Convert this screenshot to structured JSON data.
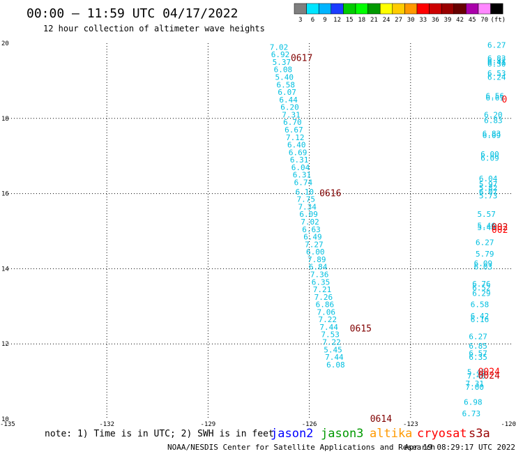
{
  "header": {
    "title": "00:00 – 11:59 UTC 04/17/2022",
    "subtitle": "12 hour collection of altimeter wave heights"
  },
  "colorbar": {
    "labels": [
      "3",
      "6",
      "9",
      "12",
      "15",
      "18",
      "21",
      "24",
      "27",
      "30",
      "33",
      "36",
      "39",
      "42",
      "45",
      "70",
      "(ft)"
    ],
    "colors": [
      "#7f7f7f",
      "#00e5ff",
      "#00b4ff",
      "#1b3cff",
      "#00cc00",
      "#00ff00",
      "#009900",
      "#ffff00",
      "#ffcc00",
      "#ff9900",
      "#ff0000",
      "#cc0000",
      "#990000",
      "#660000",
      "#aa00aa",
      "#ff88ff",
      "#000000"
    ]
  },
  "chart_data": {
    "type": "scatter",
    "xlim": [
      -135,
      -120
    ],
    "ylim": [
      10,
      20
    ],
    "xticks": [
      -135,
      -132,
      -129,
      -126,
      -123,
      -120
    ],
    "xtick_labels": [
      "-135",
      "-132",
      "-129",
      "-126",
      "-123",
      "-120"
    ],
    "yticks": [
      10,
      12,
      14,
      16,
      18,
      20
    ],
    "ytick_labels": [
      "10",
      "12",
      "14",
      "16",
      "18",
      "20"
    ],
    "grid": true,
    "track_main": [
      {
        "x": -126.9,
        "y": 19.9,
        "v": "7.02"
      },
      {
        "x": -126.86,
        "y": 19.7,
        "v": "6.92"
      },
      {
        "x": -126.82,
        "y": 19.5,
        "v": "5.37"
      },
      {
        "x": -126.78,
        "y": 19.3,
        "v": "6.08"
      },
      {
        "x": -126.74,
        "y": 19.1,
        "v": "5.40"
      },
      {
        "x": -126.7,
        "y": 18.9,
        "v": "6.58"
      },
      {
        "x": -126.66,
        "y": 18.7,
        "v": "6.07"
      },
      {
        "x": -126.62,
        "y": 18.5,
        "v": "6.44"
      },
      {
        "x": -126.58,
        "y": 18.3,
        "v": "6.20"
      },
      {
        "x": -126.54,
        "y": 18.1,
        "v": "7.31"
      },
      {
        "x": -126.5,
        "y": 17.9,
        "v": "6.70"
      },
      {
        "x": -126.46,
        "y": 17.7,
        "v": "6.67"
      },
      {
        "x": -126.42,
        "y": 17.5,
        "v": "7.12"
      },
      {
        "x": -126.38,
        "y": 17.3,
        "v": "6.40"
      },
      {
        "x": -126.34,
        "y": 17.1,
        "v": "6.69"
      },
      {
        "x": -126.3,
        "y": 16.9,
        "v": "6.31"
      },
      {
        "x": -126.26,
        "y": 16.7,
        "v": "6.04"
      },
      {
        "x": -126.22,
        "y": 16.5,
        "v": "6.31"
      },
      {
        "x": -126.18,
        "y": 16.3,
        "v": "6.74"
      },
      {
        "x": -126.14,
        "y": 16.05,
        "v": "6.10"
      },
      {
        "x": -126.1,
        "y": 15.85,
        "v": "7.75"
      },
      {
        "x": -126.06,
        "y": 15.65,
        "v": "7.34"
      },
      {
        "x": -126.02,
        "y": 15.45,
        "v": "6.09"
      },
      {
        "x": -125.98,
        "y": 15.25,
        "v": "7.02"
      },
      {
        "x": -125.94,
        "y": 15.05,
        "v": "6.63"
      },
      {
        "x": -125.9,
        "y": 14.85,
        "v": "6.49"
      },
      {
        "x": -125.86,
        "y": 14.65,
        "v": "7.27"
      },
      {
        "x": -125.82,
        "y": 14.45,
        "v": "6.00"
      },
      {
        "x": -125.78,
        "y": 14.25,
        "v": "7.89"
      },
      {
        "x": -125.74,
        "y": 14.05,
        "v": "6.84"
      },
      {
        "x": -125.7,
        "y": 13.85,
        "v": "7.36"
      },
      {
        "x": -125.66,
        "y": 13.65,
        "v": "6.35"
      },
      {
        "x": -125.62,
        "y": 13.45,
        "v": "7.21"
      },
      {
        "x": -125.58,
        "y": 13.25,
        "v": "7.26"
      },
      {
        "x": -125.54,
        "y": 13.05,
        "v": "6.86"
      },
      {
        "x": -125.5,
        "y": 12.85,
        "v": "7.06"
      },
      {
        "x": -125.46,
        "y": 12.65,
        "v": "7.22"
      },
      {
        "x": -125.42,
        "y": 12.45,
        "v": "7.44"
      },
      {
        "x": -125.38,
        "y": 12.25,
        "v": "7.53"
      },
      {
        "x": -125.34,
        "y": 12.05,
        "v": "7.22"
      },
      {
        "x": -125.3,
        "y": 11.85,
        "v": "5.45"
      },
      {
        "x": -125.26,
        "y": 11.65,
        "v": "7.44"
      },
      {
        "x": -125.22,
        "y": 11.45,
        "v": "6.08"
      }
    ],
    "track_east": [
      {
        "x": -120.45,
        "y": 19.95,
        "v": "6.27"
      },
      {
        "x": -120.45,
        "y": 19.6,
        "v": "6.83"
      },
      {
        "x": -120.45,
        "y": 19.55,
        "v": "6.32"
      },
      {
        "x": -120.45,
        "y": 19.5,
        "v": "6.41"
      },
      {
        "x": -120.45,
        "y": 19.45,
        "v": "6.30"
      },
      {
        "x": -120.45,
        "y": 19.2,
        "v": "6.53"
      },
      {
        "x": -120.45,
        "y": 19.1,
        "v": "6.24"
      },
      {
        "x": -120.5,
        "y": 18.6,
        "v": "6.56"
      },
      {
        "x": -120.5,
        "y": 18.55,
        "v": "6.61"
      },
      {
        "x": -120.55,
        "y": 18.1,
        "v": "6.20"
      },
      {
        "x": -120.55,
        "y": 17.95,
        "v": "6.83"
      },
      {
        "x": -120.6,
        "y": 17.6,
        "v": "6.83"
      },
      {
        "x": -120.6,
        "y": 17.55,
        "v": "6.09"
      },
      {
        "x": -120.65,
        "y": 17.05,
        "v": "6.00"
      },
      {
        "x": -120.65,
        "y": 16.95,
        "v": "6.09"
      },
      {
        "x": -120.7,
        "y": 16.4,
        "v": "6.04"
      },
      {
        "x": -120.7,
        "y": 16.25,
        "v": "5.97"
      },
      {
        "x": -120.7,
        "y": 16.15,
        "v": "5.82"
      },
      {
        "x": -120.7,
        "y": 16.05,
        "v": "6.07"
      },
      {
        "x": -120.7,
        "y": 15.95,
        "v": "5.73"
      },
      {
        "x": -120.75,
        "y": 15.45,
        "v": "5.57"
      },
      {
        "x": -120.75,
        "y": 15.15,
        "v": "5.46"
      },
      {
        "x": -120.75,
        "y": 15.1,
        "v": "5.48"
      },
      {
        "x": -120.8,
        "y": 14.7,
        "v": "6.27"
      },
      {
        "x": -120.8,
        "y": 14.4,
        "v": "5.79"
      },
      {
        "x": -120.85,
        "y": 14.15,
        "v": "6.09"
      },
      {
        "x": -120.85,
        "y": 14.05,
        "v": "6.03"
      },
      {
        "x": -120.9,
        "y": 13.6,
        "v": "6.76"
      },
      {
        "x": -120.9,
        "y": 13.5,
        "v": "6.52"
      },
      {
        "x": -120.9,
        "y": 13.35,
        "v": "6.29"
      },
      {
        "x": -120.95,
        "y": 13.05,
        "v": "6.58"
      },
      {
        "x": -120.95,
        "y": 12.75,
        "v": "6.42"
      },
      {
        "x": -120.95,
        "y": 12.65,
        "v": "6.16"
      },
      {
        "x": -121.0,
        "y": 12.2,
        "v": "6.27"
      },
      {
        "x": -121.0,
        "y": 11.95,
        "v": "6.85"
      },
      {
        "x": -121.0,
        "y": 11.75,
        "v": "6.57"
      },
      {
        "x": -121.0,
        "y": 11.65,
        "v": "6.35"
      },
      {
        "x": -121.05,
        "y": 11.25,
        "v": "5.45"
      },
      {
        "x": -121.05,
        "y": 11.15,
        "v": "7.40"
      },
      {
        "x": -121.1,
        "y": 10.95,
        "v": "7.31"
      },
      {
        "x": -121.1,
        "y": 10.85,
        "v": "7.00"
      },
      {
        "x": -121.15,
        "y": 10.45,
        "v": "6.98"
      },
      {
        "x": -121.2,
        "y": 10.15,
        "v": "6.73"
      }
    ],
    "time_labels": [
      {
        "x": -126.55,
        "y": 19.6,
        "v": "0617",
        "color": "#800000"
      },
      {
        "x": -125.7,
        "y": 16.0,
        "v": "0616",
        "color": "#800000"
      },
      {
        "x": -124.8,
        "y": 12.4,
        "v": "0615",
        "color": "#800000"
      },
      {
        "x": -124.2,
        "y": 10.0,
        "v": "0614",
        "color": "#800000"
      },
      {
        "x": -120.3,
        "y": 18.5,
        "v": "0",
        "color": "#ff0000"
      },
      {
        "x": -120.6,
        "y": 15.1,
        "v": "002",
        "color": "#cc0000"
      },
      {
        "x": -120.6,
        "y": 15.03,
        "v": "002",
        "color": "#ff0000"
      },
      {
        "x": -121.0,
        "y": 11.25,
        "v": "0024",
        "color": "#ff0000"
      },
      {
        "x": -121.0,
        "y": 11.15,
        "v": "0024",
        "color": "#cc0000"
      }
    ]
  },
  "footer": {
    "note": "note: 1) Time is in UTC; 2) SWH is in feet",
    "satellites": [
      {
        "name": "jason2",
        "color": "#0000ff"
      },
      {
        "name": "jason3",
        "color": "#009900"
      },
      {
        "name": "altika",
        "color": "#ff9900"
      },
      {
        "name": "cryosat",
        "color": "#ff0000"
      },
      {
        "name": "s3a",
        "color": "#990000"
      }
    ],
    "credit": "NOAA/NESDIS Center for Satellite Applications and Research",
    "generated": "Apr 19 08:29:17 UTC 2022"
  },
  "colors": {
    "value_text": "#00bfe0"
  }
}
